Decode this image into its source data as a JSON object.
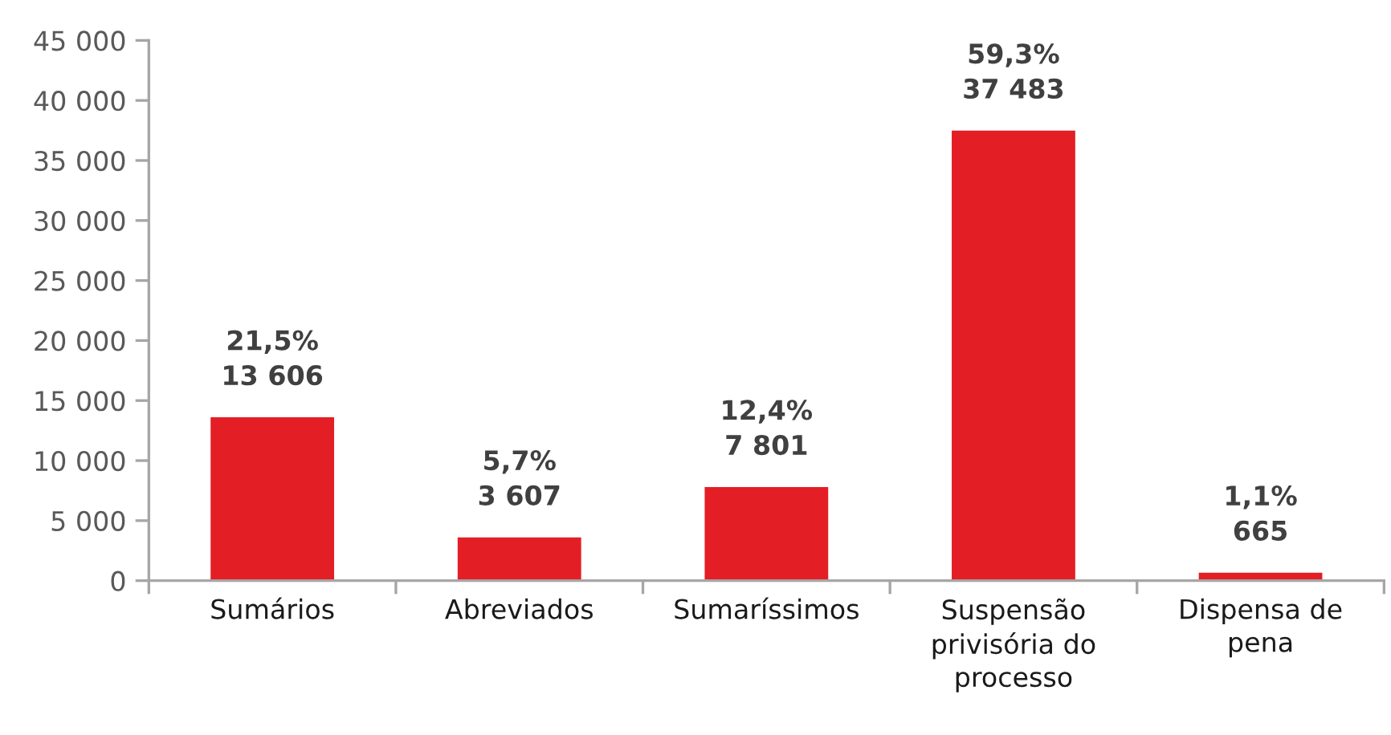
{
  "chart_data": {
    "type": "bar",
    "categories": [
      "Sumários",
      "Abreviados",
      "Sumaríssimos",
      "Suspensão\nprivisória do\nprocesso",
      "Dispensa de\npena"
    ],
    "values": [
      13606,
      3607,
      7801,
      37483,
      665
    ],
    "color": "#e31e25",
    "value_labels": [
      "21,5%\n13 606",
      "5,7%\n3 607",
      "12,4%\n7 801",
      "59,3%\n37 483",
      "1,1%\n665"
    ],
    "ylim": [
      0,
      45000
    ],
    "yticks": [
      0,
      {
        "value": 5000,
        "label": "5 000"
      },
      {
        "value": 10000,
        "label": "10 000"
      },
      {
        "value": 15000,
        "label": "15 000"
      },
      {
        "value": 20000,
        "label": "20 000"
      },
      {
        "value": 25000,
        "label": "25 000"
      },
      {
        "value": 30000,
        "label": "30 000"
      },
      {
        "value": 35000,
        "label": "35 000"
      },
      {
        "value": 40000,
        "label": "40 000"
      },
      {
        "value": 45000,
        "label": "45 000"
      }
    ]
  }
}
